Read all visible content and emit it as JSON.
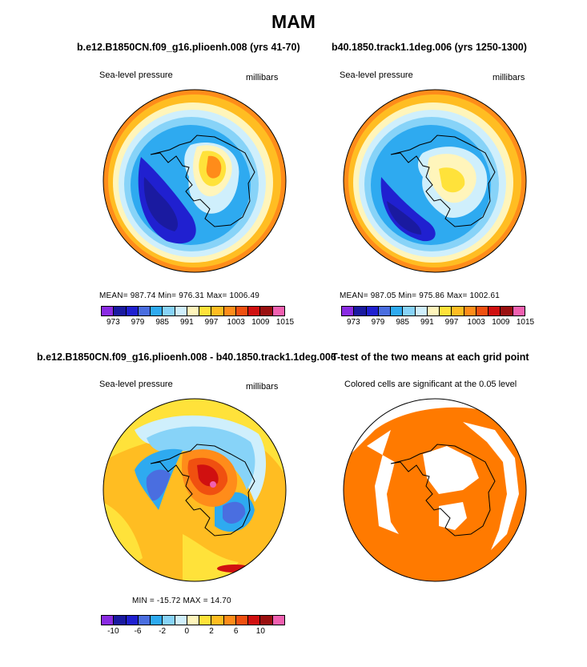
{
  "title": "MAM",
  "top_left": {
    "heading": "b.e12.B1850CN.f09_g16.plioenh.008 (yrs 41-70)",
    "left_label": "Sea-level pressure",
    "right_label": "millibars",
    "stats": "MEAN= 987.74   Min= 976.31   Max= 1006.49"
  },
  "top_right": {
    "heading": "b40.1850.track1.1deg.006 (yrs 1250-1300)",
    "left_label": "Sea-level pressure",
    "right_label": "millibars",
    "stats": "MEAN= 987.05   Min= 975.86   Max= 1002.61"
  },
  "bottom_left": {
    "heading": "b.e12.B1850CN.f09_g16.plioenh.008 - b40.1850.track1.1deg.006",
    "left_label": "Sea-level pressure",
    "right_label": "millibars",
    "stats": "MIN = -15.72  MAX =   14.70"
  },
  "bottom_right": {
    "heading": "T-test of the two means at each grid point",
    "note": "Colored cells are significant at the 0.05 level"
  },
  "colorbar_abs": {
    "colors": [
      "#8a2be2",
      "#1a1aa0",
      "#2020d0",
      "#4a6ee0",
      "#2eaaf0",
      "#87d3f8",
      "#cfeffc",
      "#fff5bb",
      "#ffe23a",
      "#ffbd22",
      "#ff8c1a",
      "#f05010",
      "#d01010",
      "#9a1010",
      "#f060b0"
    ],
    "labels": [
      "973",
      "979",
      "985",
      "991",
      "997",
      "1003",
      "1009",
      "1015"
    ]
  },
  "colorbar_diff": {
    "colors": [
      "#8a2be2",
      "#1a1aa0",
      "#2020d0",
      "#4a6ee0",
      "#2eaaf0",
      "#87d3f8",
      "#cfeffc",
      "#fff5bb",
      "#ffe23a",
      "#ffbd22",
      "#ff8c1a",
      "#f05010",
      "#d01010",
      "#9a1010",
      "#f060b0"
    ],
    "labels": [
      "-10",
      "-6",
      "-2",
      "0",
      "2",
      "6",
      "10"
    ]
  },
  "map_colors": {
    "orange": "#ff7a00",
    "deep_blue": "#1a1aa0",
    "mid_blue": "#2020d0",
    "sky": "#2eaaf0",
    "light_sky": "#87d3f8",
    "pale": "#cfeffc",
    "cream": "#fff5bb",
    "yellow": "#ffe23a",
    "amber": "#ffbd22",
    "red": "#d01010"
  }
}
